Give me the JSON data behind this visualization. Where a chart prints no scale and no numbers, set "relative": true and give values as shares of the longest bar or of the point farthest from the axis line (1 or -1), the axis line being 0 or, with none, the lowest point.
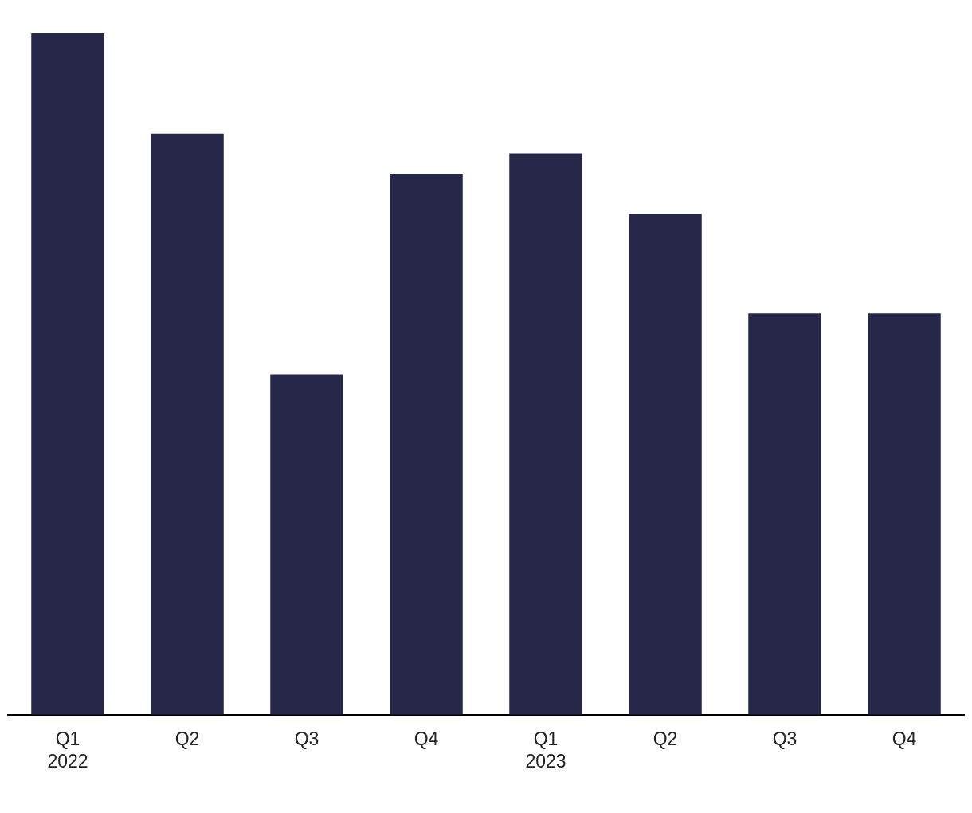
{
  "chart_data": {
    "type": "bar",
    "relative": true,
    "categories": [
      "Q1\n2022",
      "Q2",
      "Q3",
      "Q4",
      "Q1\n2023",
      "Q2",
      "Q3",
      "Q4"
    ],
    "values": [
      1,
      0.853,
      0.5,
      0.794,
      0.824,
      0.735,
      0.589,
      0.589
    ],
    "color": "#27274a",
    "grid": false,
    "legend": false
  }
}
